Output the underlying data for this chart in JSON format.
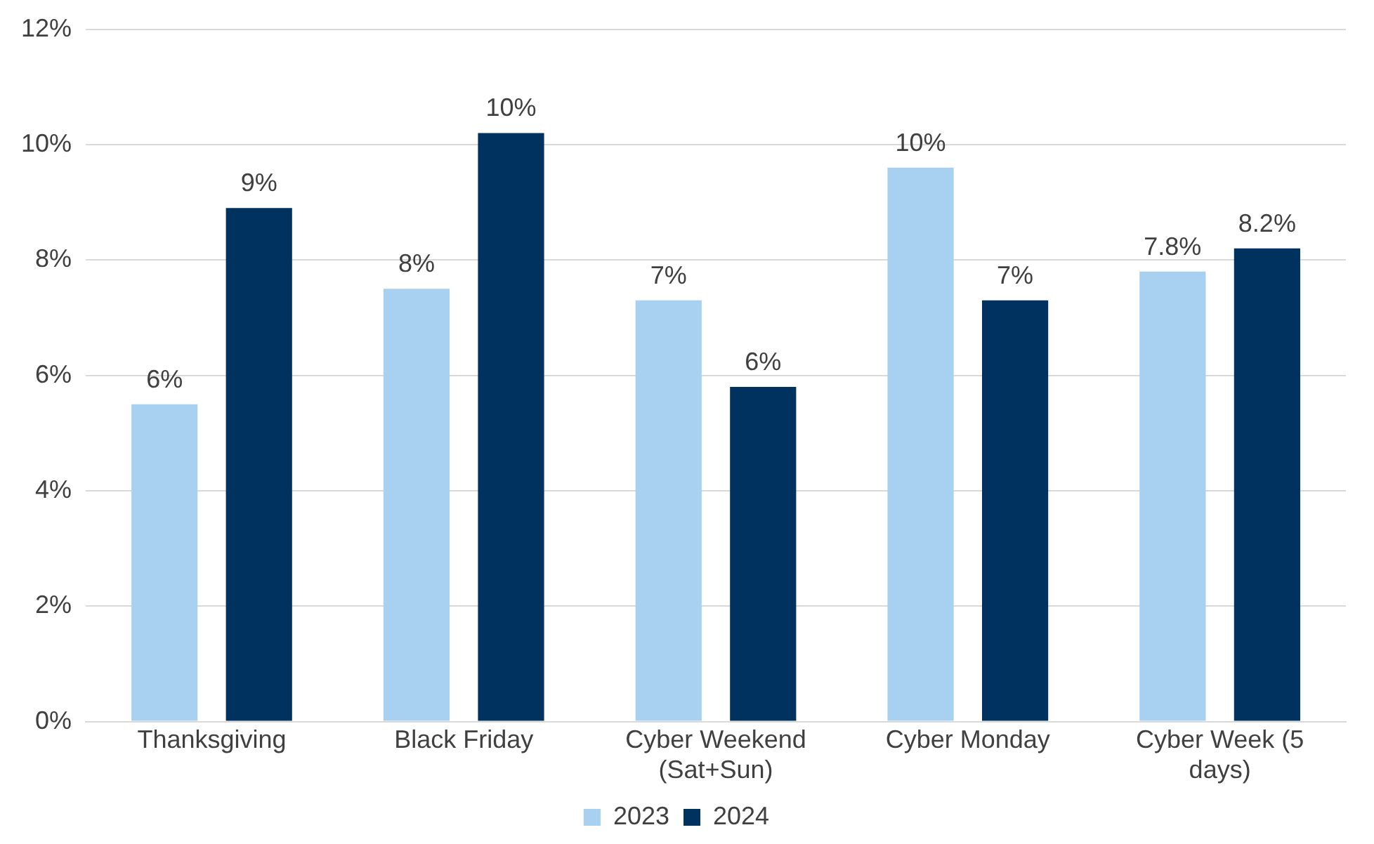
{
  "chart_data": {
    "type": "bar",
    "categories": [
      "Thanksgiving",
      "Black Friday",
      "Cyber Weekend (Sat+Sun)",
      "Cyber Monday",
      "Cyber Week (5 days)"
    ],
    "series": [
      {
        "name": "2023",
        "color": "#a8d0f0",
        "values": [
          5.5,
          7.5,
          7.3,
          9.6,
          7.8
        ],
        "value_labels": [
          "6%",
          "8%",
          "7%",
          "10%",
          "7.8%"
        ]
      },
      {
        "name": "2024",
        "color": "#00325f",
        "values": [
          8.9,
          10.2,
          5.8,
          7.3,
          8.2
        ],
        "value_labels": [
          "9%",
          "10%",
          "6%",
          "7%",
          "8.2%"
        ]
      }
    ],
    "ylim": [
      0,
      12
    ],
    "yticks": [
      {
        "value": 0,
        "label": "0%"
      },
      {
        "value": 2,
        "label": "2%"
      },
      {
        "value": 4,
        "label": "4%"
      },
      {
        "value": 6,
        "label": "6%"
      },
      {
        "value": 8,
        "label": "8%"
      },
      {
        "value": 10,
        "label": "10%"
      },
      {
        "value": 12,
        "label": "12%"
      }
    ],
    "grid": "y",
    "legend": "bottom"
  }
}
